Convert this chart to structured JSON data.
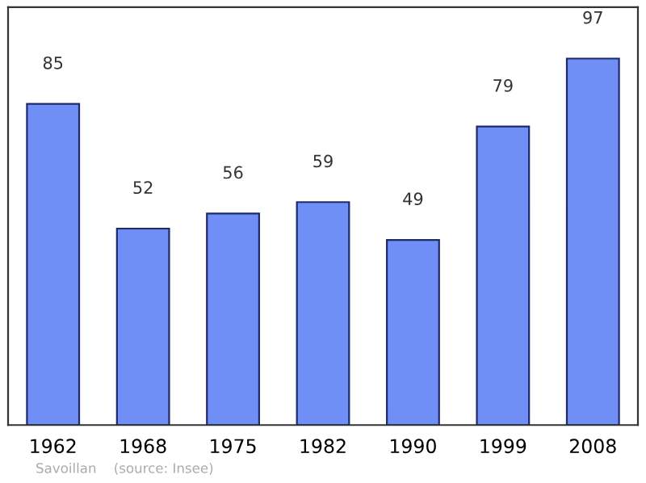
{
  "chart_data": {
    "type": "bar",
    "categories": [
      "1962",
      "1968",
      "1975",
      "1982",
      "1990",
      "1999",
      "2008"
    ],
    "values": [
      85,
      52,
      56,
      59,
      49,
      79,
      97
    ],
    "color": "#6f8ff7",
    "data_labels": true,
    "grid": false,
    "legend": false,
    "annotations": [
      "Savoillan    (source: Insee)"
    ]
  }
}
